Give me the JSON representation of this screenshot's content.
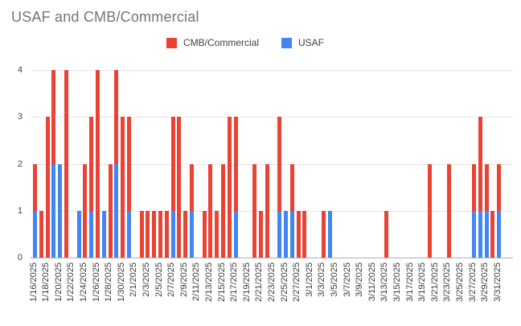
{
  "title": "USAF and CMB/Commercial",
  "legend": {
    "items": [
      {
        "label": "CMB/Commercial",
        "color": "#EA4335"
      },
      {
        "label": "USAF",
        "color": "#4285F4"
      }
    ]
  },
  "chart_data": {
    "type": "bar",
    "stacked": true,
    "title": "USAF and CMB/Commercial",
    "xlabel": "",
    "ylabel": "",
    "ylim": [
      0,
      4
    ],
    "yticks": [
      0,
      1,
      2,
      3,
      4
    ],
    "grid": true,
    "legend_position": "top",
    "x_label_every": 2,
    "categories": [
      "1/16/2025",
      "1/17/2025",
      "1/18/2025",
      "1/19/2025",
      "1/20/2025",
      "1/21/2025",
      "1/22/2025",
      "1/23/2025",
      "1/24/2025",
      "1/25/2025",
      "1/26/2025",
      "1/27/2025",
      "1/28/2025",
      "1/29/2025",
      "1/30/2025",
      "1/31/2025",
      "2/1/2025",
      "2/2/2025",
      "2/3/2025",
      "2/4/2025",
      "2/5/2025",
      "2/6/2025",
      "2/7/2025",
      "2/8/2025",
      "2/9/2025",
      "2/10/2025",
      "2/11/2025",
      "2/12/2025",
      "2/13/2025",
      "2/14/2025",
      "2/15/2025",
      "2/16/2025",
      "2/17/2025",
      "2/18/2025",
      "2/19/2025",
      "2/20/2025",
      "2/21/2025",
      "2/22/2025",
      "2/23/2025",
      "2/24/2025",
      "2/25/2025",
      "2/26/2025",
      "2/27/2025",
      "2/28/2025",
      "3/1/2025",
      "3/2/2025",
      "3/3/2025",
      "3/4/2025",
      "3/5/2025",
      "3/6/2025",
      "3/7/2025",
      "3/8/2025",
      "3/9/2025",
      "3/10/2025",
      "3/11/2025",
      "3/12/2025",
      "3/13/2025",
      "3/14/2025",
      "3/15/2025",
      "3/16/2025",
      "3/17/2025",
      "3/18/2025",
      "3/19/2025",
      "3/20/2025",
      "3/21/2025",
      "3/22/2025",
      "3/23/2025",
      "3/24/2025",
      "3/25/2025",
      "3/26/2025",
      "3/27/2025",
      "3/28/2025",
      "3/29/2025",
      "3/30/2025",
      "3/31/2025"
    ],
    "series": [
      {
        "name": "USAF",
        "color": "#4285F4",
        "values": [
          1,
          0,
          0,
          2,
          2,
          0,
          0,
          1,
          0,
          1,
          0,
          1,
          0,
          2,
          0,
          1,
          0,
          0,
          0,
          0,
          0,
          0,
          1,
          0,
          0,
          1,
          0,
          0,
          0,
          0,
          0,
          0,
          1,
          0,
          0,
          0,
          0,
          0,
          0,
          1,
          1,
          1,
          0,
          0,
          0,
          0,
          0,
          1,
          0,
          0,
          0,
          0,
          0,
          0,
          0,
          0,
          0,
          0,
          0,
          0,
          0,
          0,
          0,
          0,
          0,
          0,
          0,
          0,
          0,
          0,
          1,
          1,
          1,
          0,
          1
        ]
      },
      {
        "name": "CMB/Commercial",
        "color": "#EA4335",
        "values": [
          1,
          1,
          3,
          2,
          0,
          4,
          0,
          0,
          2,
          2,
          4,
          0,
          2,
          2,
          3,
          2,
          0,
          1,
          1,
          1,
          1,
          1,
          2,
          3,
          1,
          1,
          0,
          1,
          2,
          1,
          2,
          3,
          2,
          0,
          0,
          2,
          1,
          2,
          0,
          2,
          0,
          1,
          1,
          1,
          0,
          0,
          1,
          0,
          0,
          0,
          0,
          0,
          0,
          0,
          0,
          0,
          1,
          0,
          0,
          0,
          0,
          0,
          0,
          2,
          0,
          0,
          2,
          0,
          0,
          0,
          1,
          2,
          1,
          1,
          1
        ]
      }
    ]
  }
}
